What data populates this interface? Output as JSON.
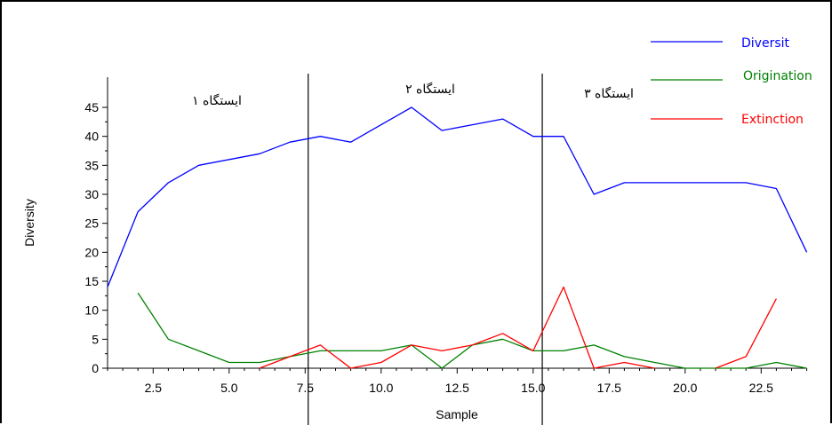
{
  "chart_data": {
    "type": "line",
    "title": "",
    "xlabel": "Sample",
    "ylabel": "Diversity",
    "xlim": [
      1,
      24
    ],
    "ylim": [
      0,
      50
    ],
    "x_ticks": [
      2.5,
      5.0,
      7.5,
      10.0,
      12.5,
      15.0,
      17.5,
      20.0,
      22.5
    ],
    "x_tick_labels": [
      "2.5",
      "5.0",
      "7.5",
      "10.0",
      "12.5",
      "15.0",
      "17.5",
      "20.0",
      "22.5"
    ],
    "y_ticks": [
      0,
      5,
      10,
      15,
      20,
      25,
      30,
      35,
      40,
      45
    ],
    "y_tick_labels": [
      "0",
      "5",
      "10",
      "15",
      "20",
      "25",
      "30",
      "35",
      "40",
      "45"
    ],
    "grid": false,
    "legend_position": "top-right",
    "series": [
      {
        "name": "Diversit",
        "color": "#0000ff",
        "x": [
          1,
          2,
          3,
          4,
          5,
          6,
          7,
          8,
          9,
          10,
          11,
          12,
          13,
          14,
          15,
          16,
          17,
          18,
          19,
          20,
          21,
          22,
          23,
          24
        ],
        "y": [
          14,
          27,
          32,
          35,
          36,
          37,
          39,
          40,
          39,
          42,
          45,
          41,
          42,
          43,
          40,
          40,
          30,
          32,
          32,
          32,
          32,
          32,
          31,
          20
        ]
      },
      {
        "name": "Origination",
        "color": "#008000",
        "x": [
          2,
          3,
          4,
          5,
          6,
          7,
          8,
          9,
          10,
          11,
          12,
          13,
          14,
          15,
          16,
          17,
          18,
          19,
          20,
          21,
          22,
          23,
          24
        ],
        "y": [
          13,
          5,
          3,
          1,
          1,
          2,
          3,
          3,
          3,
          4,
          0,
          4,
          5,
          3,
          3,
          4,
          2,
          1,
          0,
          0,
          0,
          1,
          0
        ]
      },
      {
        "name": "Extinction",
        "color": "#ff0000",
        "x": [
          6,
          7,
          8,
          9,
          10,
          11,
          12,
          13,
          14,
          15,
          16,
          17,
          18,
          19,
          null,
          21,
          22,
          23
        ],
        "y": [
          0,
          2,
          4,
          0,
          1,
          4,
          3,
          4,
          6,
          3,
          14,
          0,
          1,
          0,
          null,
          0,
          2,
          12
        ]
      }
    ],
    "dividers_x": [
      7.6,
      15.3
    ],
    "station_labels": [
      "ایستگاه ۱",
      "ایستگاه ۲",
      "ایستگاه ۳"
    ]
  }
}
